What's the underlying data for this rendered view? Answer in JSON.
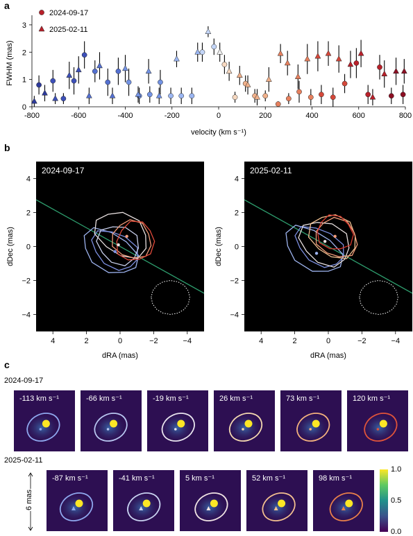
{
  "panel_letters": {
    "a": "a",
    "b": "b",
    "c": "c"
  },
  "chart_data": [
    {
      "type": "scatter",
      "panel": "a",
      "xlabel": "velocity (km s⁻¹)",
      "ylabel": "FWHM (mas)",
      "xlim": [
        -800,
        800
      ],
      "ylim": [
        0,
        3.2
      ],
      "xticks": [
        "-800",
        "-600",
        "-400",
        "-200",
        "0",
        "200",
        "400",
        "600",
        "800"
      ],
      "yticks": [
        "0",
        "1",
        "2",
        "3"
      ],
      "legend": [
        "2024-09-17",
        "2025-02-11"
      ],
      "legend_position": "top-left",
      "series": [
        {
          "name": "2024-09-17",
          "marker": "circle",
          "points": [
            [
              -770,
              0.8,
              0.35
            ],
            [
              -710,
              0.95,
              0.4
            ],
            [
              -665,
              0.3,
              0.2
            ],
            [
              -620,
              0.95,
              0.5
            ],
            [
              -575,
              1.9,
              0.5
            ],
            [
              -530,
              1.3,
              0.4
            ],
            [
              -475,
              0.9,
              0.5
            ],
            [
              -430,
              1.3,
              0.5
            ],
            [
              -385,
              0.9,
              0.5
            ],
            [
              -340,
              0.4,
              0.3
            ],
            [
              -295,
              0.45,
              0.3
            ],
            [
              -250,
              0.9,
              0.45
            ],
            [
              -205,
              0.4,
              0.3
            ],
            [
              -160,
              0.4,
              0.3
            ],
            [
              -115,
              0.4,
              0.3
            ],
            [
              -70,
              2.0,
              0.35
            ],
            [
              -20,
              2.2,
              0.3
            ],
            [
              25,
              1.55,
              0.35
            ],
            [
              70,
              0.35,
              0.2
            ],
            [
              115,
              0.85,
              0.3
            ],
            [
              155,
              0.4,
              0.25
            ],
            [
              200,
              0.4,
              0.2
            ],
            [
              255,
              0.1,
              0.1
            ],
            [
              300,
              0.3,
              0.2
            ],
            [
              345,
              0.55,
              0.4
            ],
            [
              395,
              0.35,
              0.3
            ],
            [
              440,
              0.45,
              0.35
            ],
            [
              490,
              0.35,
              0.35
            ],
            [
              540,
              0.85,
              0.35
            ],
            [
              590,
              1.6,
              0.55
            ],
            [
              640,
              0.45,
              0.35
            ],
            [
              690,
              1.45,
              0.45
            ],
            [
              740,
              0.4,
              0.3
            ],
            [
              790,
              0.45,
              0.35
            ]
          ]
        },
        {
          "name": "2025-02-11",
          "marker": "triangle",
          "points": [
            [
              -790,
              0.2,
              0.2
            ],
            [
              -745,
              0.5,
              0.3
            ],
            [
              -700,
              0.3,
              0.2
            ],
            [
              -640,
              1.15,
              0.5
            ],
            [
              -600,
              1.35,
              0.5
            ],
            [
              -555,
              0.4,
              0.3
            ],
            [
              -510,
              1.5,
              0.5
            ],
            [
              -455,
              0.4,
              0.3
            ],
            [
              -400,
              1.4,
              0.5
            ],
            [
              -345,
              0.45,
              0.3
            ],
            [
              -300,
              1.3,
              0.45
            ],
            [
              -255,
              0.4,
              0.3
            ],
            [
              -180,
              1.75,
              0.3
            ],
            [
              -90,
              2.0,
              0.35
            ],
            [
              -45,
              2.75,
              0.2
            ],
            [
              5,
              2.0,
              0.35
            ],
            [
              45,
              1.3,
              0.35
            ],
            [
              90,
              1.15,
              0.35
            ],
            [
              125,
              0.8,
              0.35
            ],
            [
              165,
              0.35,
              0.3
            ],
            [
              215,
              1.0,
              0.45
            ],
            [
              265,
              1.95,
              0.35
            ],
            [
              295,
              1.6,
              0.45
            ],
            [
              340,
              1.1,
              0.45
            ],
            [
              380,
              1.75,
              0.55
            ],
            [
              425,
              1.85,
              0.55
            ],
            [
              470,
              1.95,
              0.45
            ],
            [
              515,
              1.75,
              0.5
            ],
            [
              565,
              1.55,
              0.5
            ],
            [
              610,
              1.95,
              0.5
            ],
            [
              660,
              0.35,
              0.3
            ],
            [
              710,
              1.2,
              0.5
            ],
            [
              760,
              1.3,
              0.5
            ],
            [
              795,
              1.3,
              0.45
            ]
          ]
        }
      ]
    },
    {
      "type": "contour",
      "panel": "b-left",
      "title": "2024-09-17",
      "xlabel": "dRA (mas)",
      "ylabel": "dDec (mas)",
      "xlim": [
        5,
        -5
      ],
      "ylim": [
        -5,
        5
      ],
      "xticks": [
        "4",
        "2",
        "0",
        "−2",
        "−4"
      ],
      "yticks": [
        "−4",
        "−2",
        "0",
        "2",
        "4"
      ],
      "line": {
        "color": "#2e9e6e",
        "slope": 0.55
      },
      "components": [
        {
          "cx": 0.6,
          "cy": -0.3,
          "rx": 1.8,
          "ry": 1.1,
          "color": "#9db3ee"
        },
        {
          "cx": 0.3,
          "cy": -0.2,
          "rx": 1.5,
          "ry": 1.0,
          "color": "#7c8fe0"
        },
        {
          "cx": 0.1,
          "cy": 0.1,
          "rx": 1.3,
          "ry": 1.1,
          "color": "#c8cfec"
        },
        {
          "cx": -0.1,
          "cy": 0.7,
          "rx": 1.7,
          "ry": 1.2,
          "color": "#e8e0e0"
        },
        {
          "cx": -0.7,
          "cy": 0.4,
          "rx": 1.2,
          "ry": 1.1,
          "color": "#f29c7a"
        },
        {
          "cx": -0.9,
          "cy": 0.3,
          "rx": 1.1,
          "ry": 1.2,
          "color": "#e04a3a"
        }
      ],
      "points": [
        {
          "x": 0.3,
          "y": -0.3,
          "color": "#7c8fe0"
        },
        {
          "x": 0.1,
          "y": 0.1,
          "color": "#e8e0e0"
        },
        {
          "x": -0.4,
          "y": 0.6,
          "color": "#f29c7a"
        }
      ],
      "beam": {
        "cx": -3.0,
        "cy": -3.0,
        "r": 1.0
      }
    },
    {
      "type": "contour",
      "panel": "b-right",
      "title": "2025-02-11",
      "xlabel": "dRA (mas)",
      "ylabel": "dDec (mas)",
      "xlim": [
        5,
        -5
      ],
      "ylim": [
        -5,
        5
      ],
      "xticks": [
        "4",
        "2",
        "0",
        "−2",
        "−4"
      ],
      "yticks": [
        "−4",
        "−2",
        "0",
        "2",
        "4"
      ],
      "line": {
        "color": "#2e9e6e",
        "slope": 0.55
      },
      "components": [
        {
          "cx": 0.9,
          "cy": -0.2,
          "rx": 1.9,
          "ry": 1.1,
          "color": "#9db3ee"
        },
        {
          "cx": 0.5,
          "cy": 0.0,
          "rx": 1.6,
          "ry": 1.0,
          "color": "#7c8fe0"
        },
        {
          "cx": 0.2,
          "cy": 0.2,
          "rx": 1.6,
          "ry": 1.2,
          "color": "#e8e0e0"
        },
        {
          "cx": -0.3,
          "cy": 0.6,
          "rx": 1.5,
          "ry": 1.2,
          "color": "#f2c090"
        },
        {
          "cx": -0.5,
          "cy": 0.5,
          "rx": 1.3,
          "ry": 1.1,
          "color": "#f29c7a"
        },
        {
          "cx": -0.4,
          "cy": 0.8,
          "rx": 1.1,
          "ry": 1.0,
          "color": "#d93a2e"
        }
      ],
      "points": [
        {
          "x": 0.7,
          "y": -0.4,
          "color": "#9db3ee"
        },
        {
          "x": 0.2,
          "y": 0.3,
          "color": "#e8e0e0"
        },
        {
          "x": -0.4,
          "y": 0.6,
          "color": "#f29c7a"
        }
      ],
      "beam": {
        "cx": -3.0,
        "cy": -3.0,
        "r": 1.0
      }
    }
  ],
  "panel_c": {
    "rows": [
      {
        "label": "2024-09-17",
        "images": [
          {
            "label": "-113 km s⁻¹",
            "color": "#8fa8ee"
          },
          {
            "label": "-66 km s⁻¹",
            "color": "#b8c6f0"
          },
          {
            "label": "-19 km s⁻¹",
            "color": "#e8e4ee"
          },
          {
            "label": "26 km s⁻¹",
            "color": "#f3d8b0"
          },
          {
            "label": "73 km s⁻¹",
            "color": "#f3b27e"
          },
          {
            "label": "120 km s⁻¹",
            "color": "#e0543a"
          }
        ]
      },
      {
        "label": "2025-02-11",
        "images": [
          {
            "label": "-87 km s⁻¹",
            "color": "#8fa8ee"
          },
          {
            "label": "-41 km s⁻¹",
            "color": "#c8d2f0"
          },
          {
            "label": "5 km s⁻¹",
            "color": "#f0e4e4"
          },
          {
            "label": "52 km s⁻¹",
            "color": "#f3c090"
          },
          {
            "label": "98 km s⁻¹",
            "color": "#e8804a"
          }
        ]
      }
    ],
    "scale_label": "6 mas",
    "colorbar": {
      "ticks": [
        "1.0",
        "0.5",
        "0.0"
      ],
      "min": 0.0,
      "max": 1.0
    }
  }
}
